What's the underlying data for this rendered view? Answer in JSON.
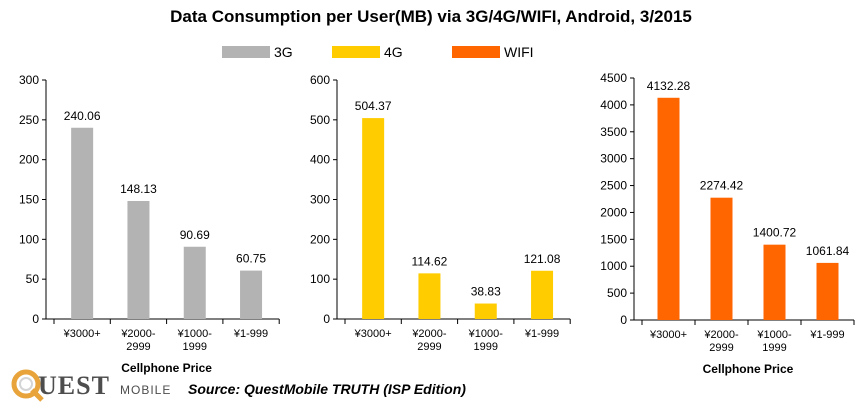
{
  "title": "Data Consumption per User(MB) via 3G/4G/WIFI, Android, 3/2015",
  "legend": [
    {
      "label": "3G",
      "color": "#b3b3b3"
    },
    {
      "label": "4G",
      "color": "#ffcc00"
    },
    {
      "label": "WIFI",
      "color": "#ff6600"
    }
  ],
  "source": "Source: QuestMobile TRUTH (ISP Edition)",
  "logo": {
    "text": "UEST",
    "sub": "MOBILE"
  },
  "chart_data": [
    {
      "type": "bar",
      "series_name": "3G",
      "color": "#b3b3b3",
      "categories": [
        [
          "¥3000+"
        ],
        [
          "¥2000-",
          "2999"
        ],
        [
          "¥1000-",
          "1999"
        ],
        [
          "¥1-999"
        ]
      ],
      "values": [
        240.06,
        148.13,
        90.69,
        60.75
      ],
      "value_labels": [
        "240.06",
        "148.13",
        "90.69",
        "60.75"
      ],
      "ylim": [
        0,
        300
      ],
      "yticks": [
        0,
        50,
        100,
        150,
        200,
        250,
        300
      ],
      "xlabel": "Cellphone   Price"
    },
    {
      "type": "bar",
      "series_name": "4G",
      "color": "#ffcc00",
      "categories": [
        [
          "¥3000+"
        ],
        [
          "¥2000-",
          "2999"
        ],
        [
          "¥1000-",
          "1999"
        ],
        [
          "¥1-999"
        ]
      ],
      "values": [
        504.37,
        114.62,
        38.83,
        121.08
      ],
      "value_labels": [
        "504.37",
        "114.62",
        "38.83",
        "121.08"
      ],
      "ylim": [
        0,
        600
      ],
      "yticks": [
        0,
        100,
        200,
        300,
        400,
        500,
        600
      ],
      "xlabel": ""
    },
    {
      "type": "bar",
      "series_name": "WIFI",
      "color": "#ff6600",
      "categories": [
        [
          "¥3000+"
        ],
        [
          "¥2000-",
          "2999"
        ],
        [
          "¥1000-",
          "1999"
        ],
        [
          "¥1-999"
        ]
      ],
      "values": [
        4132.28,
        2274.42,
        1400.72,
        1061.84
      ],
      "value_labels": [
        "4132.28",
        "2274.42",
        "1400.72",
        "1061.84"
      ],
      "ylim": [
        0,
        4500
      ],
      "yticks": [
        0,
        500,
        1000,
        1500,
        2000,
        2500,
        3000,
        3500,
        4000,
        4500
      ],
      "xlabel": "Cellphone   Price"
    }
  ]
}
